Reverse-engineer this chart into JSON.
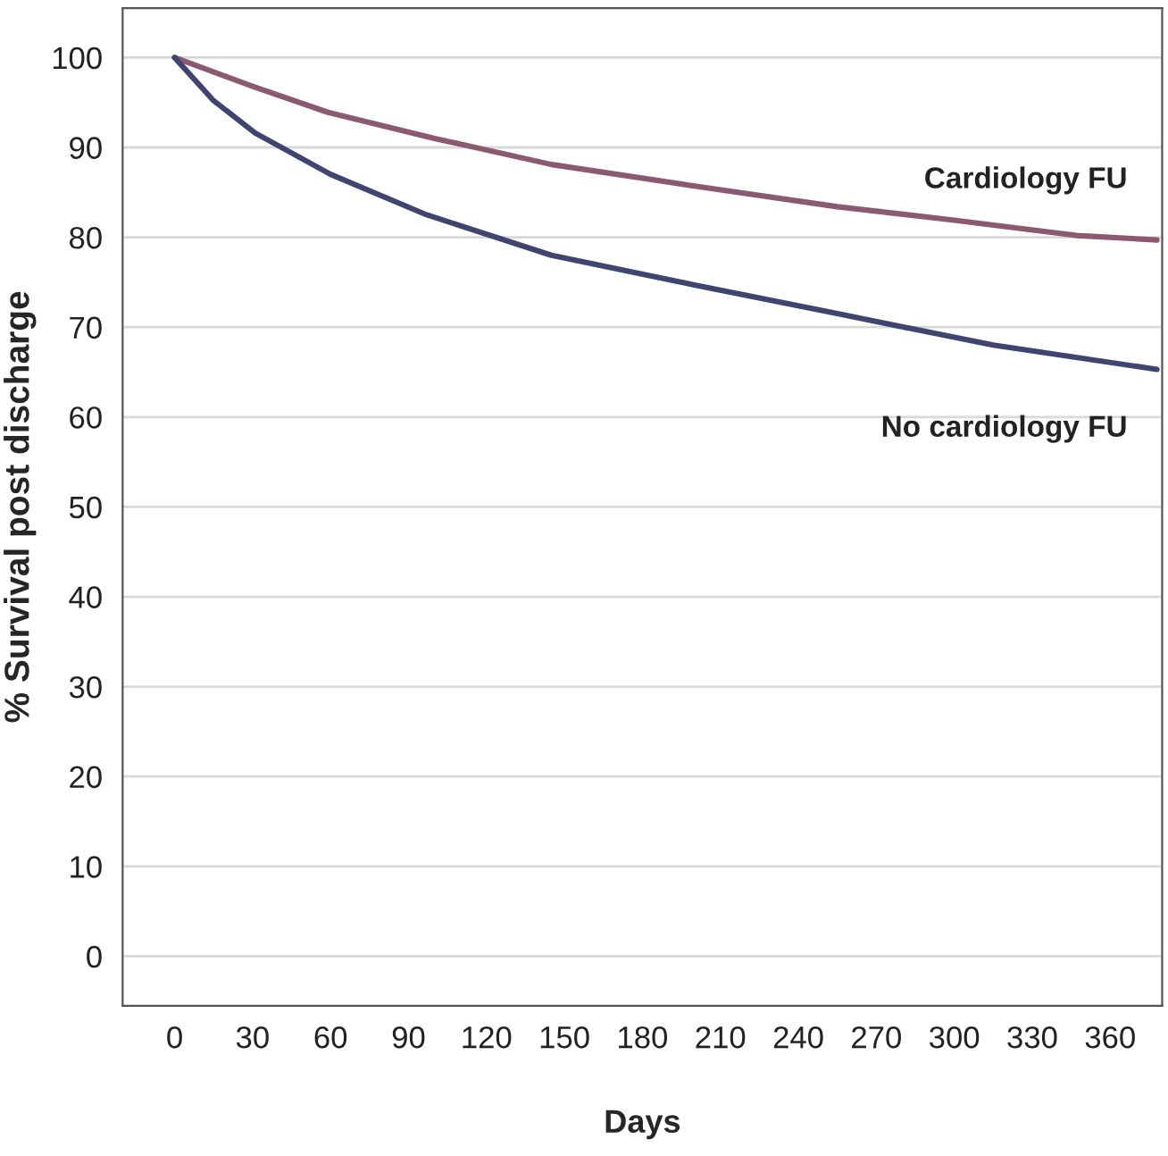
{
  "chart_data": {
    "type": "line",
    "xlabel": "Days",
    "ylabel": "% Survival post discharge",
    "xlim": [
      -20,
      380
    ],
    "ylim": [
      -5.5,
      105.5
    ],
    "xticks": [
      0,
      30,
      60,
      90,
      120,
      150,
      180,
      210,
      240,
      270,
      300,
      330,
      360
    ],
    "yticks": [
      0,
      10,
      20,
      30,
      40,
      50,
      60,
      70,
      80,
      90,
      100
    ],
    "grid": "y",
    "legend": false,
    "series": [
      {
        "name": "Cardiology FU",
        "color": "#8c5a6f",
        "x": [
          0,
          30,
          59,
          100,
          145,
          200,
          255,
          300,
          347,
          378
        ],
        "values": [
          100,
          96.8,
          93.9,
          91.0,
          88.1,
          85.7,
          83.4,
          81.9,
          80.2,
          79.7
        ]
      },
      {
        "name": "No cardiology FU",
        "color": "#3f4570",
        "x": [
          0,
          15,
          31,
          60,
          97,
          145,
          200,
          255,
          315,
          378
        ],
        "values": [
          100,
          95.2,
          91.6,
          87.0,
          82.5,
          78.0,
          74.7,
          71.5,
          68.0,
          65.3
        ]
      }
    ]
  }
}
